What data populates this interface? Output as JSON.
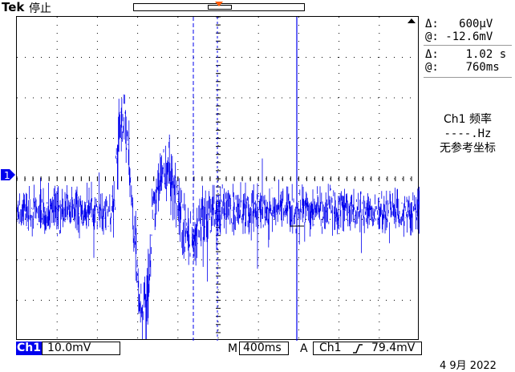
{
  "header": {
    "brand": "Tek",
    "state": "停止"
  },
  "colors": {
    "trace": "#0000ee",
    "trigger_marker": "#ff5a00",
    "grid": "#000000"
  },
  "cursors": {
    "amplitude_delta": "Δ:   600µV",
    "amplitude_at": "@: -12.6mV",
    "time_delta": "Δ:    1.02 s",
    "time_at": "@:    760ms"
  },
  "measure": {
    "title": "Ch1 频率",
    "value": "----.Hz",
    "note": "无参考坐标"
  },
  "footer": {
    "channel": "Ch1",
    "volts_per_div": "10.0mV",
    "m_label": "M",
    "time_per_div": "400ms",
    "a_label": "A",
    "trig_source": "Ch1",
    "trig_slope_icon": "rising-edge-icon",
    "trig_level": "79.4mV"
  },
  "date": "4 9月 2022",
  "ch_marker_label": "1"
}
